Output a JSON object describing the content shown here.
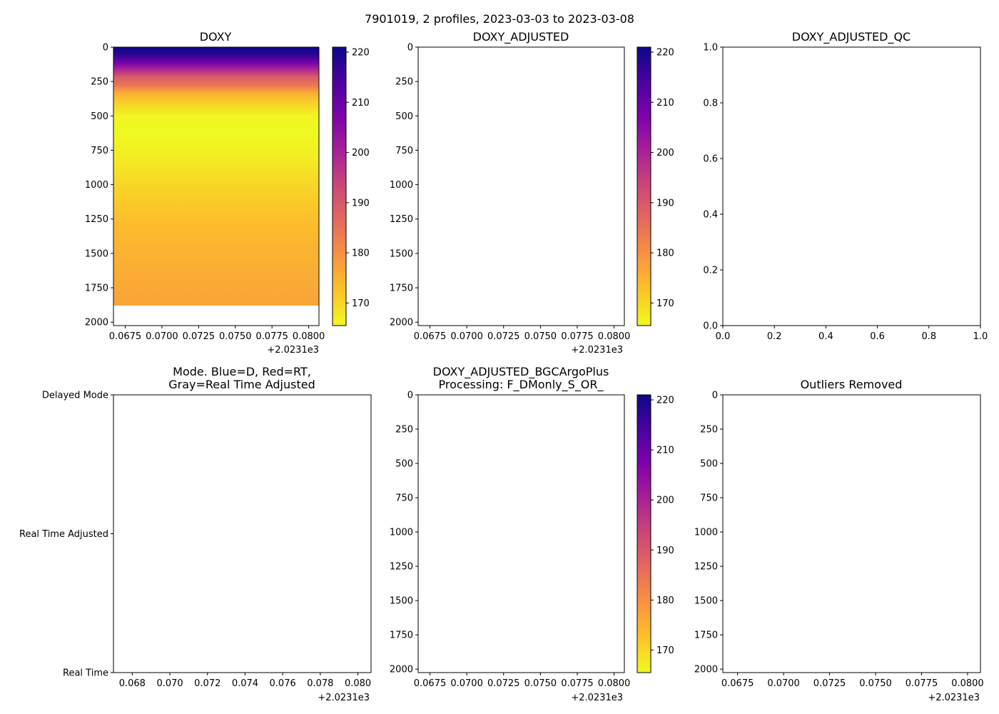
{
  "suptitle": "7901019, 2 profiles, 2023-03-03 to 2023-03-08",
  "offset_text": "+2.0231e3",
  "colormap": {
    "name": "plasma_r",
    "min": 165.5,
    "max": 221,
    "stops": [
      "#f0f921",
      "#fdc328",
      "#f89441",
      "#e56b5d",
      "#cc4778",
      "#a82296",
      "#7e03a8",
      "#4c02a1",
      "#0d0887"
    ],
    "ticks": [
      "170",
      "180",
      "190",
      "200",
      "210",
      "220"
    ],
    "tick_values": [
      170,
      180,
      190,
      200,
      210,
      220
    ]
  },
  "panels": {
    "doxy": {
      "title": "DOXY",
      "y_ticks": [
        "0",
        "250",
        "500",
        "750",
        "1000",
        "1250",
        "1500",
        "1750",
        "2000"
      ],
      "x_ticks": [
        "0.0675",
        "0.0700",
        "0.0725",
        "0.0750",
        "0.0775",
        "0.0800"
      ],
      "ylim": [
        2025,
        0
      ],
      "xlim": [
        0.0667,
        0.0807
      ],
      "profile_bottom_depth": 1880,
      "profile": [
        {
          "depth": 0,
          "value": 221
        },
        {
          "depth": 40,
          "value": 219
        },
        {
          "depth": 80,
          "value": 214
        },
        {
          "depth": 120,
          "value": 207
        },
        {
          "depth": 170,
          "value": 198
        },
        {
          "depth": 220,
          "value": 189
        },
        {
          "depth": 280,
          "value": 184
        },
        {
          "depth": 330,
          "value": 176
        },
        {
          "depth": 400,
          "value": 171
        },
        {
          "depth": 500,
          "value": 166
        },
        {
          "depth": 620,
          "value": 165.5
        },
        {
          "depth": 800,
          "value": 167
        },
        {
          "depth": 1000,
          "value": 170
        },
        {
          "depth": 1250,
          "value": 173
        },
        {
          "depth": 1500,
          "value": 175
        },
        {
          "depth": 1880,
          "value": 177
        }
      ]
    },
    "doxy_adjusted": {
      "title": "DOXY_ADJUSTED",
      "y_ticks": [
        "0",
        "250",
        "500",
        "750",
        "1000",
        "1250",
        "1500",
        "1750",
        "2000"
      ],
      "x_ticks": [
        "0.0675",
        "0.0700",
        "0.0725",
        "0.0750",
        "0.0775",
        "0.0800"
      ]
    },
    "doxy_adjusted_qc": {
      "title": "DOXY_ADJUSTED_QC",
      "y_ticks": [
        "0.0",
        "0.2",
        "0.4",
        "0.6",
        "0.8",
        "1.0"
      ],
      "x_ticks": [
        "0.0",
        "0.2",
        "0.4",
        "0.6",
        "0.8",
        "1.0"
      ]
    },
    "mode": {
      "title_line1": "Mode. Blue=D, Red=RT,",
      "title_line2": "Gray=Real Time Adjusted",
      "y_ticks": [
        "Delayed Mode",
        "Real Time Adjusted",
        "Real Time"
      ],
      "x_ticks": [
        "0.068",
        "0.070",
        "0.072",
        "0.074",
        "0.076",
        "0.078",
        "0.080"
      ]
    },
    "bgc": {
      "title_line1": "DOXY_ADJUSTED_BGCArgoPlus",
      "title_line2": "Processing: F_DMonly_S_OR_",
      "y_ticks": [
        "0",
        "250",
        "500",
        "750",
        "1000",
        "1250",
        "1500",
        "1750",
        "2000"
      ],
      "x_ticks": [
        "0.0675",
        "0.0700",
        "0.0725",
        "0.0750",
        "0.0775",
        "0.0800"
      ]
    },
    "outliers": {
      "title": "Outliers Removed",
      "y_ticks": [
        "0",
        "250",
        "500",
        "750",
        "1000",
        "1250",
        "1500",
        "1750",
        "2000"
      ],
      "x_ticks": [
        "0.0675",
        "0.0700",
        "0.0725",
        "0.0750",
        "0.0775",
        "0.0800"
      ]
    }
  },
  "chart_data": [
    {
      "type": "heatmap",
      "title": "DOXY",
      "xlabel": "",
      "ylabel": "",
      "x_range": [
        0.0667,
        0.0807
      ],
      "x_offset": "+2.0231e3",
      "ylim": [
        2025,
        0
      ],
      "colorbar_range": [
        165.5,
        221
      ],
      "depth_profile": [
        [
          0,
          221
        ],
        [
          40,
          219
        ],
        [
          80,
          214
        ],
        [
          120,
          207
        ],
        [
          170,
          198
        ],
        [
          220,
          189
        ],
        [
          280,
          184
        ],
        [
          330,
          176
        ],
        [
          400,
          171
        ],
        [
          500,
          166
        ],
        [
          620,
          165.5
        ],
        [
          800,
          167
        ],
        [
          1000,
          170
        ],
        [
          1250,
          173
        ],
        [
          1500,
          175
        ],
        [
          1880,
          177
        ]
      ]
    },
    {
      "type": "heatmap",
      "title": "DOXY_ADJUSTED",
      "values": [],
      "colorbar_range": [
        165.5,
        221
      ]
    },
    {
      "type": "scatter",
      "title": "DOXY_ADJUSTED_QC",
      "values": [],
      "xlim": [
        0,
        1
      ],
      "ylim": [
        0,
        1
      ]
    },
    {
      "type": "scatter",
      "title": "Mode. Blue=D, Red=RT, Gray=Real Time Adjusted",
      "values": [],
      "categories": [
        "Delayed Mode",
        "Real Time Adjusted",
        "Real Time"
      ]
    },
    {
      "type": "heatmap",
      "title": "DOXY_ADJUSTED_BGCArgoPlus Processing: F_DMonly_S_OR_",
      "values": [],
      "colorbar_range": [
        165.5,
        221
      ]
    },
    {
      "type": "scatter",
      "title": "Outliers Removed",
      "values": []
    }
  ]
}
